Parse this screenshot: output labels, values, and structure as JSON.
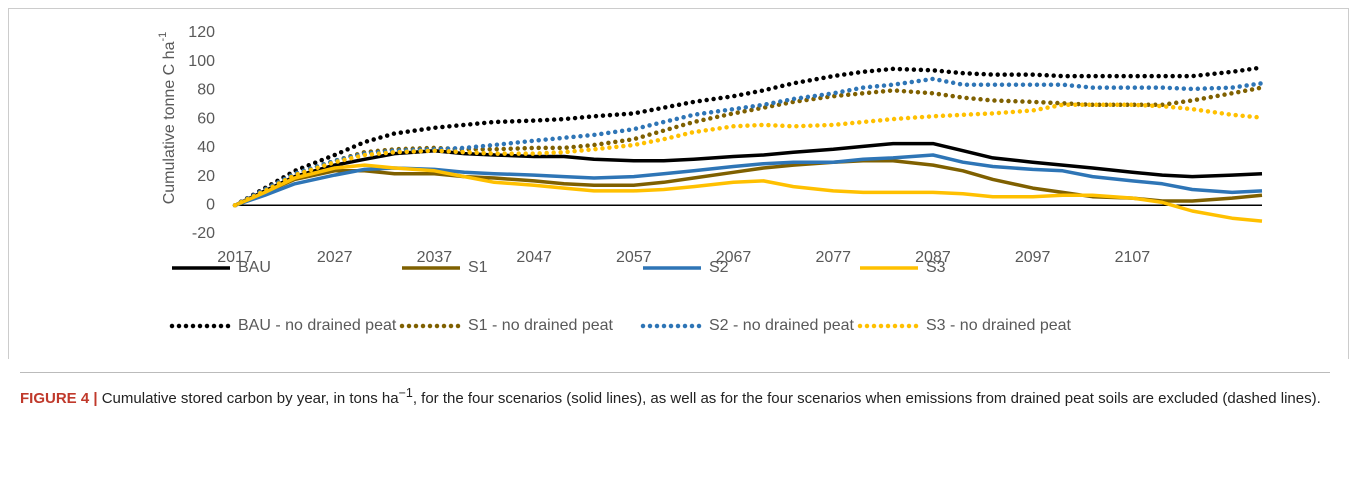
{
  "chart_data": {
    "type": "line",
    "ylabel": "Cumulative tonne C ha",
    "ylabel_sup": "-1",
    "x": [
      2017,
      2020,
      2023,
      2027,
      2030,
      2033,
      2037,
      2040,
      2043,
      2047,
      2050,
      2053,
      2057,
      2060,
      2063,
      2067,
      2070,
      2073,
      2077,
      2080,
      2083,
      2087,
      2090,
      2093,
      2097,
      2100,
      2103,
      2107,
      2110,
      2113,
      2117,
      2120
    ],
    "xlim": [
      2017,
      2120
    ],
    "xticks": [
      2017,
      2027,
      2037,
      2047,
      2057,
      2067,
      2077,
      2087,
      2097,
      2107
    ],
    "ylim": [
      -20,
      120
    ],
    "yticks": [
      -20,
      0,
      20,
      40,
      60,
      80,
      100,
      120
    ],
    "series": [
      {
        "name": "BAU",
        "color": "#000000",
        "style": "solid",
        "values": [
          0,
          10,
          20,
          28,
          32,
          36,
          38,
          36,
          35,
          34,
          34,
          32,
          31,
          31,
          32,
          34,
          35,
          37,
          39,
          41,
          43,
          43,
          38,
          33,
          30,
          28,
          26,
          23,
          21,
          20,
          21,
          22
        ]
      },
      {
        "name": "S1",
        "color": "#7f6000",
        "style": "solid",
        "values": [
          0,
          9,
          18,
          24,
          24,
          22,
          22,
          20,
          19,
          17,
          15,
          14,
          14,
          16,
          19,
          23,
          26,
          28,
          30,
          31,
          31,
          28,
          24,
          18,
          12,
          9,
          6,
          5,
          3,
          3,
          5,
          7
        ]
      },
      {
        "name": "S2",
        "color": "#2e75b6",
        "style": "solid",
        "values": [
          0,
          7,
          15,
          21,
          25,
          26,
          25,
          23,
          22,
          21,
          20,
          19,
          20,
          22,
          24,
          27,
          29,
          30,
          30,
          32,
          33,
          35,
          30,
          27,
          25,
          24,
          20,
          17,
          15,
          11,
          9,
          10
        ]
      },
      {
        "name": "S3",
        "color": "#ffc000",
        "style": "solid",
        "values": [
          0,
          9,
          19,
          26,
          28,
          26,
          24,
          20,
          16,
          14,
          12,
          10,
          10,
          11,
          13,
          16,
          17,
          13,
          10,
          9,
          9,
          9,
          8,
          6,
          6,
          7,
          7,
          5,
          2,
          -4,
          -9,
          -11
        ]
      },
      {
        "name": "BAU - no drained peat",
        "color": "#000000",
        "style": "dotted",
        "values": [
          0,
          12,
          24,
          35,
          44,
          50,
          54,
          56,
          58,
          59,
          60,
          62,
          64,
          68,
          72,
          76,
          80,
          85,
          90,
          93,
          95,
          94,
          92,
          91,
          91,
          90,
          90,
          90,
          90,
          90,
          93,
          96
        ]
      },
      {
        "name": "S1 - no drained peat",
        "color": "#7f6000",
        "style": "dotted",
        "values": [
          0,
          11,
          22,
          31,
          37,
          39,
          40,
          39,
          39,
          40,
          40,
          42,
          46,
          52,
          58,
          64,
          68,
          72,
          76,
          78,
          80,
          78,
          75,
          73,
          72,
          71,
          70,
          70,
          70,
          73,
          78,
          82
        ]
      },
      {
        "name": "S2 - no drained peat",
        "color": "#2e75b6",
        "style": "dotted",
        "values": [
          0,
          11,
          22,
          31,
          36,
          38,
          39,
          40,
          42,
          45,
          47,
          49,
          53,
          58,
          63,
          67,
          70,
          74,
          78,
          82,
          84,
          88,
          84,
          84,
          84,
          84,
          82,
          82,
          82,
          81,
          82,
          85
        ]
      },
      {
        "name": "S3 - no drained peat",
        "color": "#ffc000",
        "style": "dotted",
        "values": [
          0,
          10,
          21,
          30,
          35,
          37,
          38,
          37,
          36,
          36,
          37,
          39,
          42,
          46,
          51,
          55,
          56,
          55,
          56,
          58,
          60,
          62,
          63,
          64,
          66,
          70,
          70,
          70,
          69,
          67,
          63,
          61
        ]
      }
    ]
  },
  "caption": {
    "label": "FIGURE 4 |",
    "text_before": "Cumulative stored carbon by year, in tons ha",
    "sup": "−1",
    "text_after": ", for the four scenarios (solid lines), as well as for the four scenarios when emissions from drained peat soils are excluded (dashed lines)."
  }
}
